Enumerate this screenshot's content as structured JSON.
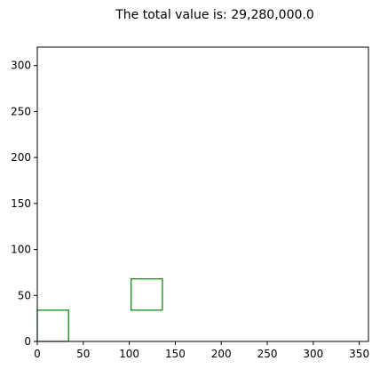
{
  "chart_data": {
    "type": "scatter",
    "title": "The total value is: 29,280,000.0",
    "xlabel": "",
    "ylabel": "",
    "xlim": [
      0,
      360
    ],
    "ylim": [
      0,
      320
    ],
    "x_ticks": [
      0,
      50,
      100,
      150,
      200,
      250,
      300,
      350
    ],
    "y_ticks": [
      0,
      50,
      100,
      150,
      200,
      250,
      300
    ],
    "grid": false,
    "rectangles": [
      {
        "x": 0,
        "y": 0,
        "width": 34,
        "height": 34
      },
      {
        "x": 102,
        "y": 34,
        "width": 34,
        "height": 34
      }
    ],
    "rect_color": "#008000"
  }
}
